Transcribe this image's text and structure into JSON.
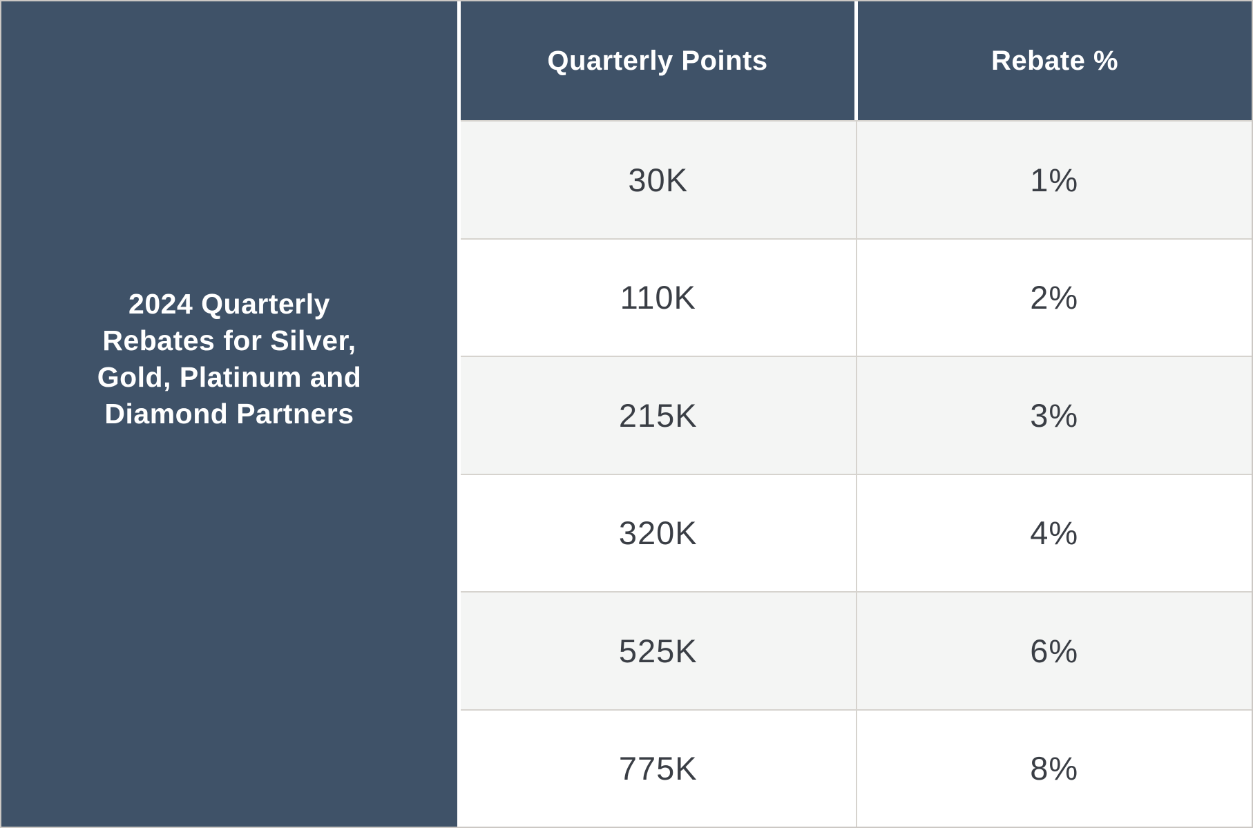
{
  "table": {
    "title": "2024 Quarterly Rebates for Silver, Gold, Platinum and Diamond Partners",
    "title_lines": [
      "2024 Quarterly",
      "Rebates for Silver,",
      "Gold, Platinum and",
      "Diamond Partners"
    ],
    "columns": [
      "Quarterly Points",
      "Rebate %"
    ],
    "rows": [
      {
        "points": "30K",
        "rebate": "1%"
      },
      {
        "points": "110K",
        "rebate": "2%"
      },
      {
        "points": "215K",
        "rebate": "3%"
      },
      {
        "points": "320K",
        "rebate": "4%"
      },
      {
        "points": "525K",
        "rebate": "6%"
      },
      {
        "points": "775K",
        "rebate": "8%"
      }
    ]
  },
  "colors": {
    "navy": "#3F5268",
    "row_alt": "#F4F5F4",
    "row_white": "#FFFFFF",
    "grid_line": "#D6D3CE",
    "body_text": "#3A3E45",
    "header_text": "#FFFFFF"
  }
}
